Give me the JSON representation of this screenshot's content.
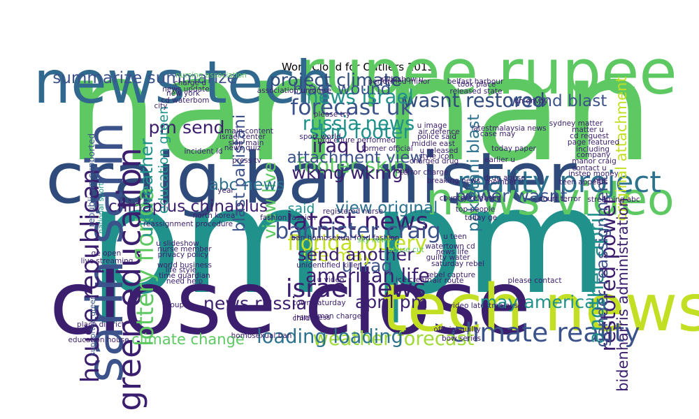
{
  "chart_data": {
    "type": "wordcloud",
    "title": "Word Cloud for Outliers 2013",
    "words": [
      {
        "text": "pm pm",
        "weight": 100,
        "color": "#21918c",
        "rot": 0
      },
      {
        "text": "nan nan",
        "weight": 98,
        "color": "#5ec962",
        "rot": 0
      },
      {
        "text": "close close",
        "weight": 60,
        "color": "#3b1f6e",
        "rot": 0
      },
      {
        "text": "craig bannister",
        "weight": 48,
        "color": "#2f4b7c",
        "rot": 0
      },
      {
        "text": "tech news",
        "weight": 44,
        "color": "#c2df23",
        "rot": 0
      },
      {
        "text": "rupee rupee",
        "weight": 42,
        "color": "#5ec962",
        "rot": 0
      },
      {
        "text": "news tech",
        "weight": 40,
        "color": "#31688e",
        "rot": 0
      },
      {
        "text": "sarin sarin",
        "weight": 34,
        "color": "#3b528b",
        "rot": 270
      },
      {
        "text": "news video",
        "weight": 30,
        "color": "#5ec962",
        "rot": 0
      },
      {
        "text": "green education",
        "weight": 22,
        "color": "#3b1f6e",
        "rot": 270
      },
      {
        "text": "reality project",
        "weight": 20,
        "color": "#2c728e",
        "rot": 0
      },
      {
        "text": "climate reality",
        "weight": 18,
        "color": "#3b528b",
        "rot": 0
      },
      {
        "text": "house republican",
        "weight": 17,
        "color": "#3b1f6e",
        "rot": 270
      },
      {
        "text": "latest news",
        "weight": 17,
        "color": "#3b1f6e",
        "rot": 0
      },
      {
        "text": "israel news",
        "weight": 17,
        "color": "#3b1f6e",
        "rot": 0
      },
      {
        "text": "lottery florida",
        "weight": 16,
        "color": "#5ec962",
        "rot": 270
      },
      {
        "text": "forecast uk",
        "weight": 15,
        "color": "#3b528b",
        "rot": 0
      },
      {
        "text": "bannister craig",
        "weight": 15,
        "color": "#3b528b",
        "rot": 0
      },
      {
        "text": "florida lottery",
        "weight": 14,
        "color": "#c2df23",
        "rot": 0
      },
      {
        "text": "another april",
        "weight": 14,
        "color": "#21918c",
        "rot": 270
      },
      {
        "text": "restored power",
        "weight": 14,
        "color": "#3b1f6e",
        "rot": 270
      },
      {
        "text": "footer skip",
        "weight": 14,
        "color": "#5ec962",
        "rot": 0
      },
      {
        "text": "russia news",
        "weight": 13,
        "color": "#21918c",
        "rot": 0
      },
      {
        "text": "skip footer",
        "weight": 13,
        "color": "#21918c",
        "rot": 0
      },
      {
        "text": "wasnt restored",
        "weight": 13,
        "color": "#2f4b7c",
        "rot": 0
      },
      {
        "text": "weather forecast",
        "weight": 13,
        "color": "#a0da39",
        "rot": 0
      },
      {
        "text": "news israel",
        "weight": 13,
        "color": "#21918c",
        "rot": 0
      },
      {
        "text": "iraq u",
        "weight": 13,
        "color": "#3b1f6e",
        "rot": 0
      },
      {
        "text": "american life",
        "weight": 13,
        "color": "#3b1f6e",
        "rot": 0
      },
      {
        "text": "loading loading",
        "weight": 13,
        "color": "#2c728e",
        "rot": 0
      },
      {
        "text": "project climate",
        "weight": 12,
        "color": "#2f4b7c",
        "rot": 0
      },
      {
        "text": "power wasnt",
        "weight": 12,
        "color": "#3b528b",
        "rot": 0
      },
      {
        "text": "news russia",
        "weight": 12,
        "color": "#3b1f6e",
        "rot": 0
      },
      {
        "text": "u iraq",
        "weight": 12,
        "color": "#3b528b",
        "rot": 0
      },
      {
        "text": "life may",
        "weight": 12,
        "color": "#c2df23",
        "rot": 0
      },
      {
        "text": "may american",
        "weight": 12,
        "color": "#21918c",
        "rot": 0
      },
      {
        "text": "pm send",
        "weight": 12,
        "color": "#3b1f6e",
        "rot": 0
      },
      {
        "text": "send another",
        "weight": 12,
        "color": "#3b1f6e",
        "rot": 0
      },
      {
        "text": "april pm",
        "weight": 12,
        "color": "#3b1f6e",
        "rot": 0
      },
      {
        "text": "wkmg wkmg",
        "weight": 12,
        "color": "#3b1f6e",
        "rot": 0
      },
      {
        "text": "uk weather",
        "weight": 12,
        "color": "#21918c",
        "rot": 270
      },
      {
        "text": "view live",
        "weight": 12,
        "color": "#5ec962",
        "rot": 270
      },
      {
        "text": "summarize summarize",
        "weight": 11,
        "color": "#3b528b",
        "rot": 0
      },
      {
        "text": "chinaplus chinaplus",
        "weight": 11,
        "color": "#3b1f6e",
        "rot": 0
      },
      {
        "text": "gender reassignment",
        "weight": 11,
        "color": "#3b528b",
        "rot": 270
      },
      {
        "text": "wound blast",
        "weight": 11,
        "color": "#3b528b",
        "rot": 0
      },
      {
        "text": "blast wound",
        "weight": 11,
        "color": "#3b528b",
        "rot": 0
      },
      {
        "text": "attachment view",
        "weight": 11,
        "color": "#3b528b",
        "rot": 0
      },
      {
        "text": "view original",
        "weight": 11,
        "color": "#2c728e",
        "rot": 0
      },
      {
        "text": "original attachment",
        "weight": 10,
        "color": "#c2df23",
        "rot": 270
      },
      {
        "text": "abc news",
        "weight": 11,
        "color": "#2c728e",
        "rot": 0
      },
      {
        "text": "blast pakistani",
        "weight": 11,
        "color": "#3b528b",
        "rot": 270
      },
      {
        "text": "pakistani blast",
        "weight": 11,
        "color": "#2c728e",
        "rot": 270
      },
      {
        "text": "climate change",
        "weight": 10,
        "color": "#5ec962",
        "rot": 0
      },
      {
        "text": "bidenharris administration",
        "weight": 10,
        "color": "#3b1f6e",
        "rot": 270
      },
      {
        "text": "said",
        "weight": 9,
        "color": "#21918c",
        "rot": 0
      },
      {
        "text": "education green",
        "weight": 9,
        "color": "#21918c",
        "rot": 270
      },
      {
        "text": "republican supported",
        "weight": 6,
        "color": "#3b528b",
        "rot": 270
      },
      {
        "text": "national sport",
        "weight": 5,
        "color": "#21918c",
        "rot": 270
      },
      {
        "text": "supported green",
        "weight": 5,
        "color": "#3b528b",
        "rot": 270
      },
      {
        "text": "belfast harbour",
        "weight": 5,
        "color": "#3b1f6e",
        "rot": 0
      },
      {
        "text": "released state",
        "weight": 5,
        "color": "#3b1f6e",
        "rot": 0
      },
      {
        "text": "took place",
        "weight": 5,
        "color": "#3b1f6e",
        "rot": 0
      },
      {
        "text": "un envoy",
        "weight": 5,
        "color": "#3b1f6e",
        "rot": 0
      },
      {
        "text": "matter u",
        "weight": 5,
        "color": "#3b1f6e",
        "rot": 0
      },
      {
        "text": "cd request",
        "weight": 5,
        "color": "#3b1f6e",
        "rot": 0
      },
      {
        "text": "page featured",
        "weight": 5,
        "color": "#3b1f6e",
        "rot": 0
      },
      {
        "text": "including",
        "weight": 5,
        "color": "#3b1f6e",
        "rot": 0
      },
      {
        "text": "company",
        "weight": 5,
        "color": "#3b1f6e",
        "rot": 0
      },
      {
        "text": "manor craig",
        "weight": 5,
        "color": "#3b1f6e",
        "rot": 0
      },
      {
        "text": "contact u",
        "weight": 5,
        "color": "#3b1f6e",
        "rot": 0
      },
      {
        "text": "instep money",
        "weight": 5,
        "color": "#3b1f6e",
        "rot": 0
      },
      {
        "text": "teen appears",
        "weight": 5,
        "color": "#3b1f6e",
        "rot": 0
      },
      {
        "text": "court terror",
        "weight": 5,
        "color": "#3b1f6e",
        "rot": 0
      },
      {
        "text": "streaming abc",
        "weight": 5,
        "color": "#3b1f6e",
        "rot": 0
      },
      {
        "text": "breaking news",
        "weight": 5,
        "color": "#3b1f6e",
        "rot": 0
      },
      {
        "text": "drug abuse",
        "weight": 5,
        "color": "#3b1f6e",
        "rot": 0
      },
      {
        "text": "today paper",
        "weight": 5,
        "color": "#3b1f6e",
        "rot": 0
      },
      {
        "text": "latestmalaysia news",
        "weight": 5,
        "color": "#3b1f6e",
        "rot": 0
      },
      {
        "text": "case may",
        "weight": 5,
        "color": "#3b1f6e",
        "rot": 0
      },
      {
        "text": "u image",
        "weight": 5,
        "color": "#3b1f6e",
        "rot": 0
      },
      {
        "text": "air defence",
        "weight": 5,
        "color": "#3b1f6e",
        "rot": 0
      },
      {
        "text": "police said",
        "weight": 5,
        "color": "#3b1f6e",
        "rot": 0
      },
      {
        "text": "middle east",
        "weight": 5,
        "color": "#3b1f6e",
        "rot": 0
      },
      {
        "text": "u released",
        "weight": 5,
        "color": "#3b1f6e",
        "rot": 0
      },
      {
        "text": "style icon",
        "weight": 5,
        "color": "#3b1f6e",
        "rot": 0
      },
      {
        "text": "charged drug",
        "weight": 5,
        "color": "#3b1f6e",
        "rot": 0
      },
      {
        "text": "terror charge",
        "weight": 5,
        "color": "#3b1f6e",
        "rot": 0
      },
      {
        "text": "main content",
        "weight": 5,
        "color": "#3b1f6e",
        "rot": 0
      },
      {
        "text": "israel center",
        "weight": 5,
        "color": "#3b1f6e",
        "rot": 0
      },
      {
        "text": "skip main",
        "weight": 5,
        "color": "#3b1f6e",
        "rot": 0
      },
      {
        "text": "news quiz",
        "weight": 5,
        "color": "#3b1f6e",
        "rot": 0
      },
      {
        "text": "press tv",
        "weight": 5,
        "color": "#3b1f6e",
        "rot": 0
      },
      {
        "text": "sport world",
        "weight": 5,
        "color": "#3b1f6e",
        "rot": 0
      },
      {
        "text": "procedure performed",
        "weight": 5,
        "color": "#3b1f6e",
        "rot": 0
      },
      {
        "text": "former official",
        "weight": 5,
        "color": "#3b1f6e",
        "rot": 0
      },
      {
        "text": "incident id",
        "weight": 5,
        "color": "#3b1f6e",
        "rot": 0
      },
      {
        "text": "registered nurse",
        "weight": 5,
        "color": "#3b1f6e",
        "rot": 0
      },
      {
        "text": "today ge",
        "weight": 5,
        "color": "#3b1f6e",
        "rot": 0
      },
      {
        "text": "u teen",
        "weight": 5,
        "color": "#3b1f6e",
        "rot": 0
      },
      {
        "text": "watertown cd",
        "weight": 5,
        "color": "#3b1f6e",
        "rot": 0
      },
      {
        "text": "news life",
        "weight": 5,
        "color": "#3b1f6e",
        "rot": 0
      },
      {
        "text": "guilty water",
        "weight": 5,
        "color": "#3b1f6e",
        "rot": 0
      },
      {
        "text": "saturday rebel",
        "weight": 5,
        "color": "#3b1f6e",
        "rot": 0
      },
      {
        "text": "rebel capture",
        "weight": 5,
        "color": "#3b1f6e",
        "rot": 0
      },
      {
        "text": "air route",
        "weight": 5,
        "color": "#3b1f6e",
        "rot": 0
      },
      {
        "text": "please contact",
        "weight": 5,
        "color": "#3b1f6e",
        "rot": 0
      },
      {
        "text": "u slideshow",
        "weight": 5,
        "color": "#3b1f6e",
        "rot": 0
      },
      {
        "text": "nurse member",
        "weight": 5,
        "color": "#3b1f6e",
        "rot": 0
      },
      {
        "text": "privacy policy",
        "weight": 5,
        "color": "#3b1f6e",
        "rot": 0
      },
      {
        "text": "world business",
        "weight": 5,
        "color": "#3b1f6e",
        "rot": 0
      },
      {
        "text": "life style",
        "weight": 5,
        "color": "#3b1f6e",
        "rot": 0
      },
      {
        "text": "time guardian",
        "weight": 5,
        "color": "#3b1f6e",
        "rot": 0
      },
      {
        "text": "need help",
        "weight": 5,
        "color": "#3b1f6e",
        "rot": 0
      },
      {
        "text": "ge open",
        "weight": 5,
        "color": "#3b1f6e",
        "rot": 0
      },
      {
        "text": "live streaming",
        "weight": 5,
        "color": "#3b1f6e",
        "rot": 0
      },
      {
        "text": "group",
        "weight": 5,
        "color": "#3b1f6e",
        "rot": 0
      },
      {
        "text": "place district",
        "weight": 5,
        "color": "#3b1f6e",
        "rot": 0
      },
      {
        "text": "education house",
        "weight": 5,
        "color": "#3b1f6e",
        "rot": 0
      },
      {
        "text": "town saturday",
        "weight": 5,
        "color": "#3b1f6e",
        "rot": 0
      },
      {
        "text": "man charged",
        "weight": 5,
        "color": "#3b1f6e",
        "rot": 0
      },
      {
        "text": "iran press",
        "weight": 5,
        "color": "#3b1f6e",
        "rot": 0
      },
      {
        "text": "official guilty",
        "weight": 5,
        "color": "#3b1f6e",
        "rot": 0
      },
      {
        "text": "reassignment procedure",
        "weight": 5,
        "color": "#3b1f6e",
        "rot": 0
      },
      {
        "text": "fashion fashion",
        "weight": 5,
        "color": "#3b1f6e",
        "rot": 0
      },
      {
        "text": "ban homosexual food fashion",
        "weight": 5,
        "color": "#3b1f6e",
        "rot": 0
      },
      {
        "text": "unidentified killer",
        "weight": 5,
        "color": "#3b1f6e",
        "rot": 0
      },
      {
        "text": "homosexual ban",
        "weight": 5,
        "color": "#3b1f6e",
        "rot": 0
      },
      {
        "text": "charge u",
        "weight": 5,
        "color": "#3b1f6e",
        "rot": 0
      },
      {
        "text": "news update",
        "weight": 5,
        "color": "#3b1f6e",
        "rot": 0
      },
      {
        "text": "new york",
        "weight": 5,
        "color": "#3b1f6e",
        "rot": 0
      },
      {
        "text": "cd waterbom",
        "weight": 5,
        "color": "#3b1f6e",
        "rot": 0
      },
      {
        "text": "city",
        "weight": 5,
        "color": "#3b1f6e",
        "rot": 0
      },
      {
        "text": "association unionise",
        "weight": 5,
        "color": "#3b1f6e",
        "rot": 0
      },
      {
        "text": "please try",
        "weight": 5,
        "color": "#3b1f6e",
        "rot": 0
      },
      {
        "text": "slideshow u",
        "weight": 5,
        "color": "#3b1f6e",
        "rot": 0
      },
      {
        "text": "performed minor",
        "weight": 5,
        "color": "#3b1f6e",
        "rot": 0
      },
      {
        "text": "nursing association",
        "weight": 5,
        "color": "#5ec962",
        "rot": 0
      },
      {
        "text": "sky news",
        "weight": 5,
        "color": "#5ec962",
        "rot": 0
      },
      {
        "text": "abuse cut",
        "weight": 5,
        "color": "#5ec962",
        "rot": 0
      },
      {
        "text": "video latestmalaysia",
        "weight": 5,
        "color": "#3b1f6e",
        "rot": 0
      },
      {
        "text": "bow series",
        "weight": 5,
        "color": "#3b1f6e",
        "rot": 0
      },
      {
        "text": "year",
        "weight": 5,
        "color": "#3b1f6e",
        "rot": 0
      },
      {
        "text": "food",
        "weight": 5,
        "color": "#3b1f6e",
        "rot": 0
      },
      {
        "text": "ice cream",
        "weight": 5,
        "color": "#3b1f6e",
        "rot": 0
      },
      {
        "text": "earlier u",
        "weight": 5,
        "color": "#3b1f6e",
        "rot": 0
      },
      {
        "text": "member",
        "weight": 5,
        "color": "#3b1f6e",
        "rot": 0
      },
      {
        "text": "red",
        "weight": 5,
        "color": "#3b1f6e",
        "rot": 0
      },
      {
        "text": "sydney matter",
        "weight": 5,
        "color": "#3b1f6e",
        "rot": 0
      },
      {
        "text": "u video",
        "weight": 5,
        "color": "#3b1f6e",
        "rot": 0
      },
      {
        "text": "north korea",
        "weight": 5,
        "color": "#3b1f6e",
        "rot": 0
      },
      {
        "text": "country released",
        "weight": 5,
        "color": "#3b1f6e",
        "rot": 0
      },
      {
        "text": "child",
        "weight": 5,
        "color": "#3b1f6e",
        "rot": 0
      },
      {
        "text": "top people",
        "weight": 5,
        "color": "#3b1f6e",
        "rot": 0
      }
    ]
  }
}
